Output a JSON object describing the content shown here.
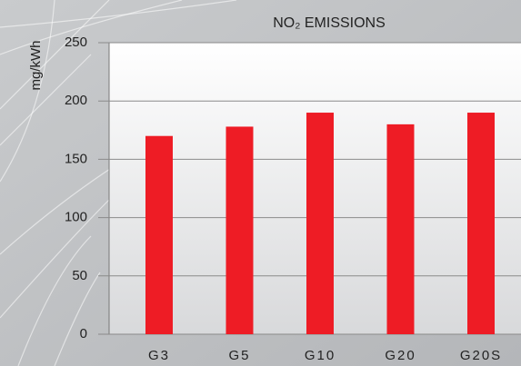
{
  "chart_data": {
    "type": "bar",
    "title": "NO₂ EMISSIONS",
    "y_label": "mg/kWh",
    "categories": [
      "G3",
      "G5",
      "G10",
      "G20",
      "G20S"
    ],
    "values": [
      170,
      178,
      190,
      180,
      190
    ],
    "color": "#ee1c25",
    "ylim": [
      0,
      250
    ],
    "yticks": [
      0,
      50,
      100,
      150,
      200,
      250
    ],
    "grid": true
  }
}
